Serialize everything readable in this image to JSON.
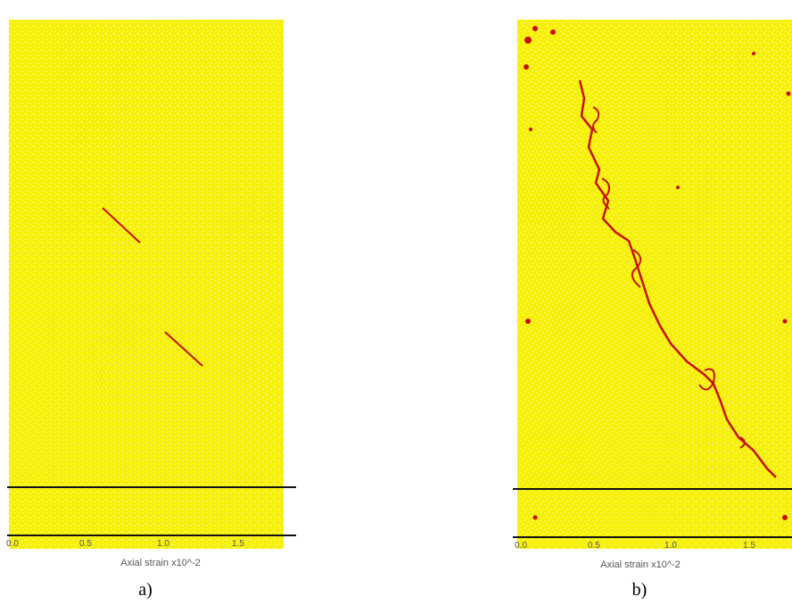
{
  "panels": [
    {
      "label": "a)",
      "ticks": [
        "0.0",
        "0.5",
        "1.0",
        "1.5"
      ],
      "axis_label": "Axial strain x10^-2"
    },
    {
      "label": "b)",
      "ticks": [
        "0.0",
        "0.5",
        "1.0",
        "1.5"
      ],
      "axis_label": "Axial strain x10^-2"
    }
  ]
}
